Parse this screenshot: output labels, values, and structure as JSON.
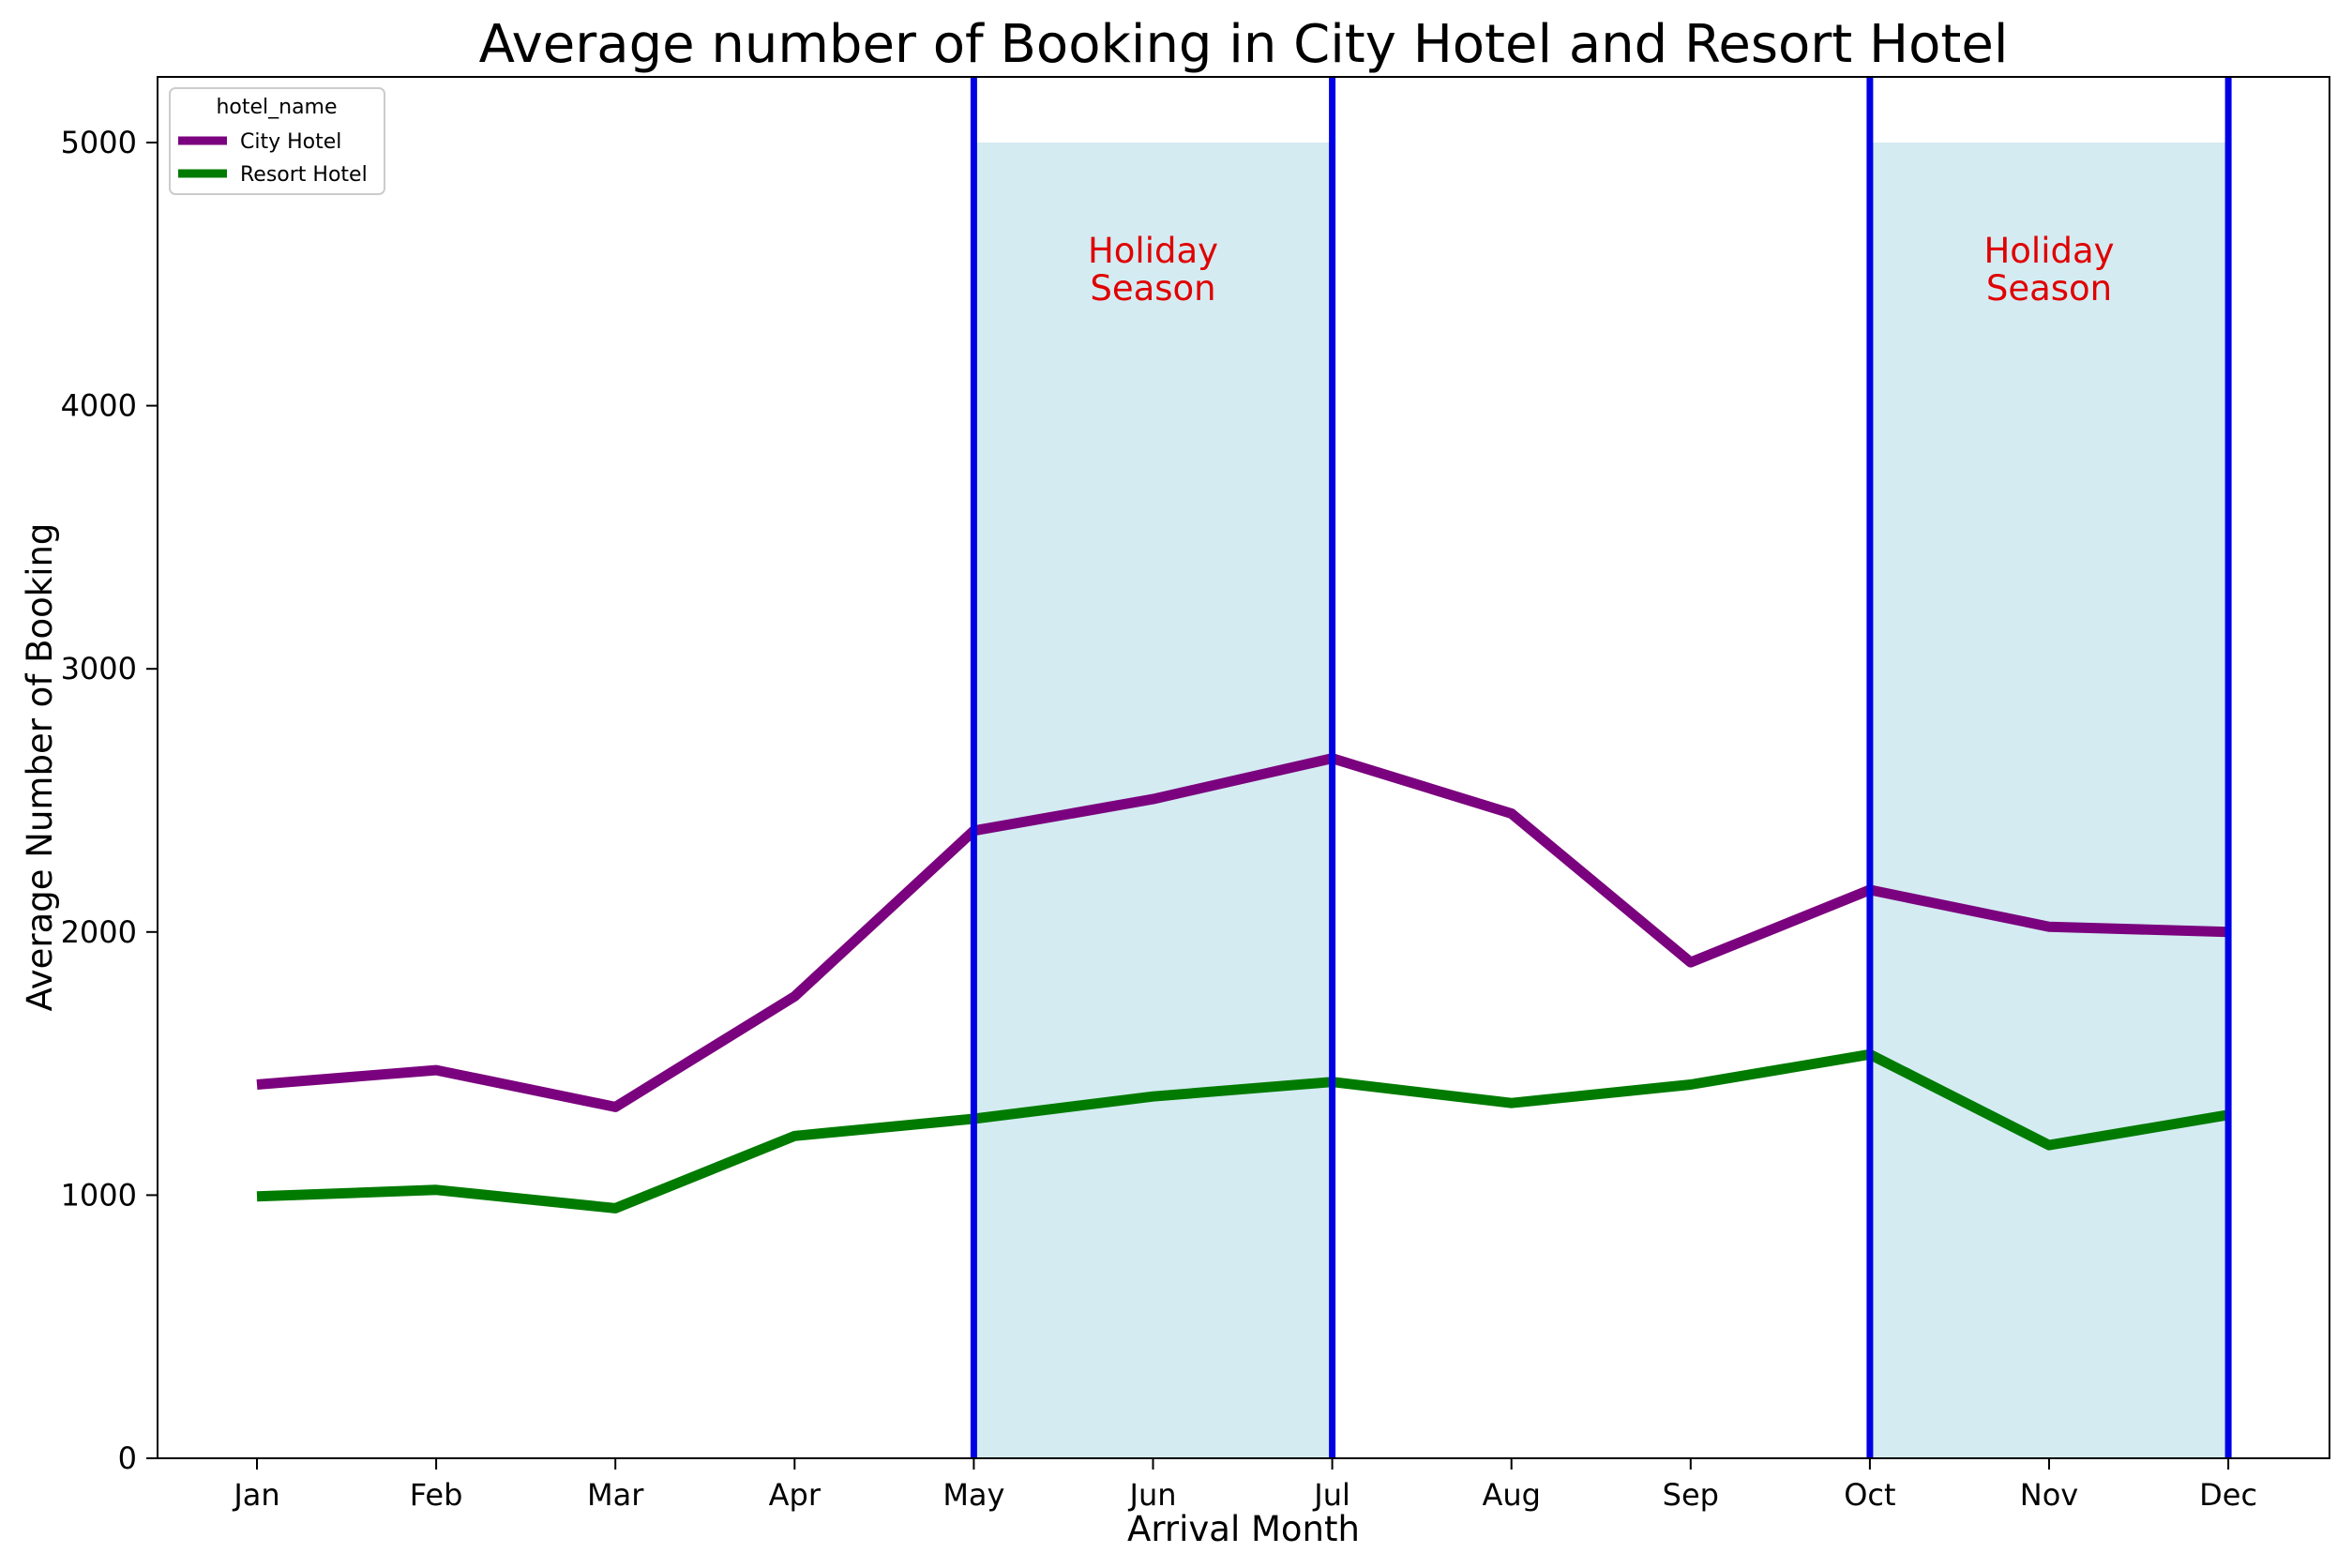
{
  "chart_data": {
    "type": "line",
    "title": "Average number of Booking in City Hotel and Resort Hotel",
    "xlabel": "Arrival Month",
    "ylabel": "Average Number of Booking",
    "categories": [
      "Jan",
      "Feb",
      "Mar",
      "Apr",
      "May",
      "Jun",
      "Jul",
      "Aug",
      "Sep",
      "Oct",
      "Nov",
      "Dec"
    ],
    "ylim": [
      0,
      5250
    ],
    "yticks": [
      "0",
      "1000",
      "2000",
      "3000",
      "4000",
      "5000"
    ],
    "grid": false,
    "legend": {
      "title": "hotel_name",
      "position": "top-left"
    },
    "series": [
      {
        "name": "City Hotel",
        "color": "#7b027e",
        "values": [
          1420,
          1475,
          1335,
          1755,
          2385,
          2505,
          2660,
          2450,
          1885,
          2160,
          2020,
          2000
        ]
      },
      {
        "name": "Resort Hotel",
        "color": "#007b00",
        "values": [
          995,
          1020,
          950,
          1225,
          1290,
          1375,
          1430,
          1350,
          1420,
          1535,
          1190,
          1305
        ]
      }
    ],
    "shaded_regions": [
      {
        "x_start": "May",
        "x_end": "Jul",
        "y_top": 5000,
        "color": "#add8e6",
        "label_line1": "Holiday",
        "label_line2": "Season",
        "label_color": "#e00000"
      },
      {
        "x_start": "Oct",
        "x_end": "Dec",
        "y_top": 5000,
        "color": "#add8e6",
        "label_line1": "Holiday",
        "label_line2": "Season",
        "label_color": "#e00000"
      }
    ],
    "vertical_lines": {
      "x": [
        "May",
        "Jul",
        "Oct",
        "Dec"
      ],
      "color": "#0000e6"
    }
  }
}
